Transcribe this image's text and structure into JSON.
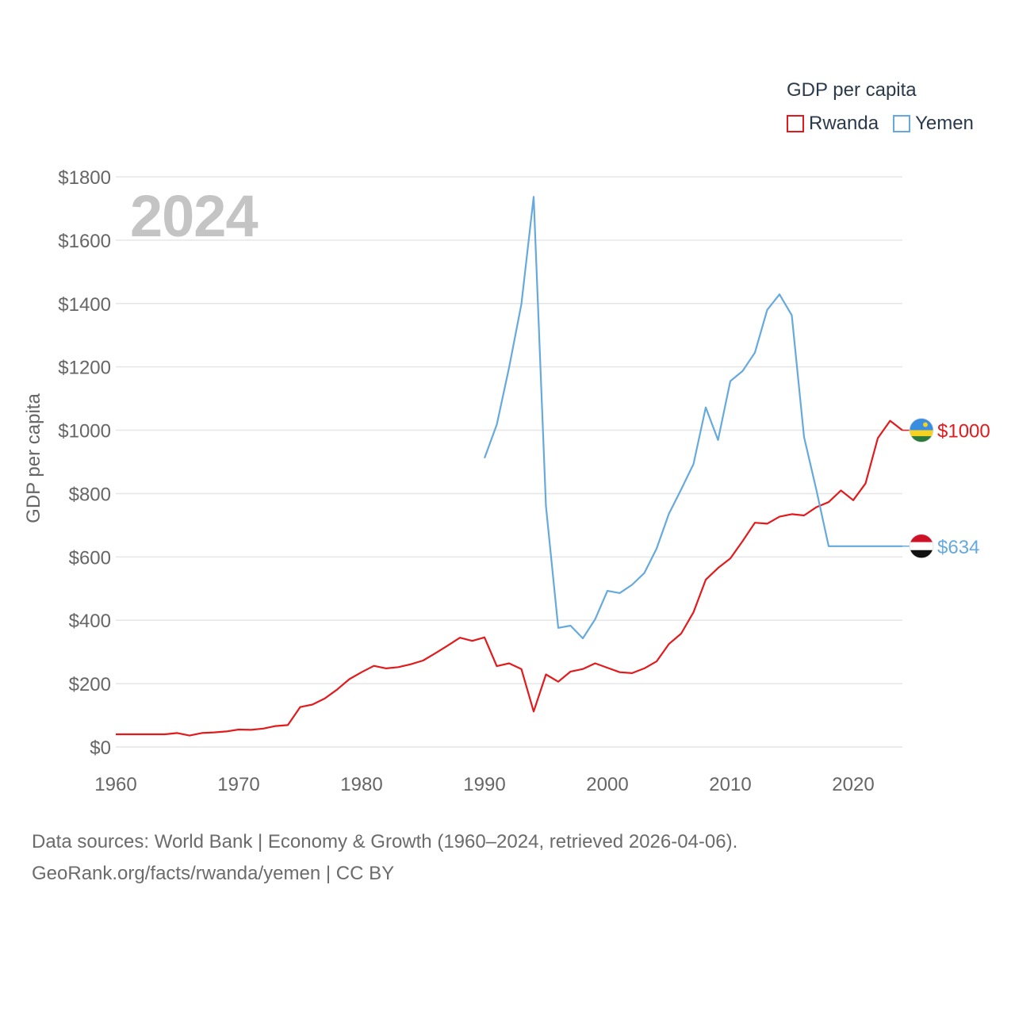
{
  "legend": {
    "title": "GDP per capita",
    "items": [
      {
        "label": "Rwanda",
        "color": "#e31a1c"
      },
      {
        "label": "Yemen",
        "color": "#66aadd"
      }
    ]
  },
  "year_label": "2024",
  "source": {
    "line1": "Data sources: World Bank | Economy & Growth (1960–2024, retrieved 2026-04-06).",
    "line2": "GeoRank.org/facts/rwanda/yemen | CC BY"
  },
  "chart_data": {
    "type": "line",
    "ylabel": "GDP per capita",
    "xlabel": "",
    "xlim": [
      1960,
      2024
    ],
    "ylim": [
      0,
      1800
    ],
    "yticks": [
      0,
      200,
      400,
      600,
      800,
      1000,
      1200,
      1400,
      1600,
      1800
    ],
    "ytick_labels": [
      "$0",
      "$200",
      "$400",
      "$600",
      "$800",
      "$1000",
      "$1200",
      "$1400",
      "$1600",
      "$1800"
    ],
    "xticks": [
      1960,
      1970,
      1980,
      1990,
      2000,
      2010,
      2020
    ],
    "xtick_labels": [
      "1960",
      "1970",
      "1980",
      "1990",
      "2000",
      "2010",
      "2020"
    ],
    "series": [
      {
        "name": "Rwanda",
        "color": "#e31a1c",
        "end_label": "$1000",
        "points": [
          [
            1960,
            40
          ],
          [
            1961,
            40
          ],
          [
            1962,
            40
          ],
          [
            1963,
            40
          ],
          [
            1964,
            40
          ],
          [
            1965,
            44
          ],
          [
            1966,
            36
          ],
          [
            1967,
            44
          ],
          [
            1968,
            46
          ],
          [
            1969,
            49
          ],
          [
            1970,
            55
          ],
          [
            1971,
            54
          ],
          [
            1972,
            58
          ],
          [
            1973,
            66
          ],
          [
            1974,
            69
          ],
          [
            1975,
            126
          ],
          [
            1976,
            134
          ],
          [
            1977,
            153
          ],
          [
            1978,
            181
          ],
          [
            1979,
            214
          ],
          [
            1980,
            236
          ],
          [
            1981,
            256
          ],
          [
            1982,
            248
          ],
          [
            1983,
            252
          ],
          [
            1984,
            261
          ],
          [
            1985,
            273
          ],
          [
            1986,
            296
          ],
          [
            1987,
            320
          ],
          [
            1988,
            345
          ],
          [
            1989,
            335
          ],
          [
            1990,
            346
          ],
          [
            1991,
            255
          ],
          [
            1992,
            264
          ],
          [
            1993,
            246
          ],
          [
            1994,
            112
          ],
          [
            1995,
            229
          ],
          [
            1996,
            206
          ],
          [
            1997,
            238
          ],
          [
            1998,
            246
          ],
          [
            1999,
            264
          ],
          [
            2000,
            250
          ],
          [
            2001,
            236
          ],
          [
            2002,
            233
          ],
          [
            2003,
            248
          ],
          [
            2004,
            270
          ],
          [
            2005,
            325
          ],
          [
            2006,
            358
          ],
          [
            2007,
            425
          ],
          [
            2008,
            528
          ],
          [
            2009,
            565
          ],
          [
            2010,
            595
          ],
          [
            2011,
            650
          ],
          [
            2012,
            708
          ],
          [
            2013,
            705
          ],
          [
            2014,
            727
          ],
          [
            2015,
            735
          ],
          [
            2016,
            731
          ],
          [
            2017,
            757
          ],
          [
            2018,
            773
          ],
          [
            2019,
            810
          ],
          [
            2020,
            779
          ],
          [
            2021,
            832
          ],
          [
            2022,
            975
          ],
          [
            2023,
            1030
          ],
          [
            2024,
            1000
          ]
        ]
      },
      {
        "name": "Yemen",
        "color": "#66aadd",
        "end_label": "$634",
        "points": [
          [
            1990,
            912
          ],
          [
            1991,
            1018
          ],
          [
            1992,
            1198
          ],
          [
            1993,
            1398
          ],
          [
            1994,
            1737
          ],
          [
            1995,
            760
          ],
          [
            1996,
            376
          ],
          [
            1997,
            383
          ],
          [
            1998,
            343
          ],
          [
            1999,
            403
          ],
          [
            2000,
            493
          ],
          [
            2001,
            486
          ],
          [
            2002,
            512
          ],
          [
            2003,
            549
          ],
          [
            2004,
            626
          ],
          [
            2005,
            736
          ],
          [
            2006,
            813
          ],
          [
            2007,
            893
          ],
          [
            2008,
            1072
          ],
          [
            2009,
            969
          ],
          [
            2010,
            1155
          ],
          [
            2011,
            1187
          ],
          [
            2012,
            1245
          ],
          [
            2013,
            1380
          ],
          [
            2014,
            1429
          ],
          [
            2015,
            1363
          ],
          [
            2016,
            978
          ],
          [
            2017,
            812
          ],
          [
            2018,
            634
          ],
          [
            2019,
            634
          ],
          [
            2020,
            634
          ],
          [
            2021,
            634
          ],
          [
            2022,
            634
          ],
          [
            2023,
            634
          ],
          [
            2024,
            634
          ]
        ]
      }
    ]
  }
}
